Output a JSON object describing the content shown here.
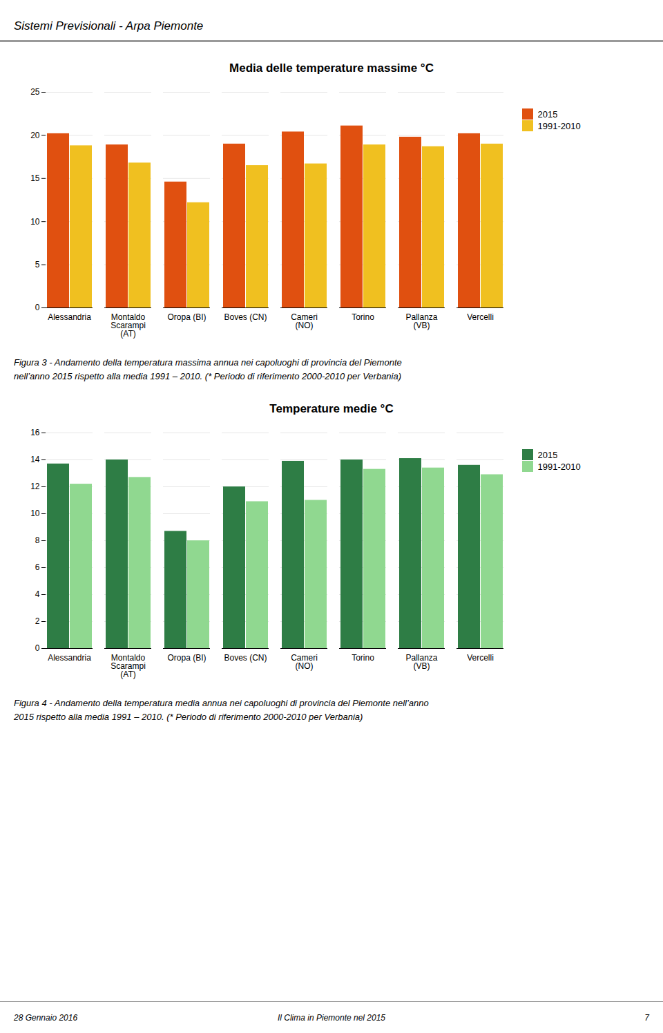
{
  "header": "Sistemi Previsionali - Arpa Piemonte",
  "chart_data": [
    {
      "type": "bar",
      "title": "Media delle temperature massime °C",
      "categories": [
        "Alessandria",
        "Montaldo\nScarampi\n(AT)",
        "Oropa (BI)",
        "Boves (CN)",
        "Cameri\n(NO)",
        "Torino",
        "Pallanza\n(VB)",
        "Vercelli"
      ],
      "series": [
        {
          "name": "2015",
          "color": "#E05010",
          "values": [
            20.2,
            18.9,
            14.6,
            19.0,
            20.4,
            21.1,
            19.8,
            20.2
          ]
        },
        {
          "name": "1991-2010",
          "color": "#F0C020",
          "values": [
            18.8,
            16.8,
            12.2,
            16.5,
            16.7,
            18.9,
            18.7,
            19.0
          ]
        }
      ],
      "ylim": [
        0,
        25
      ],
      "yticks": [
        0,
        5,
        10,
        15,
        20,
        25
      ],
      "grid": true,
      "legend": "right",
      "caption": [
        "Figura 3 - Andamento della temperatura massima annua nei capoluoghi di provincia del Piemonte",
        "nell’anno 2015 rispetto alla media 1991 – 2010. (* Periodo di riferimento 2000-2010 per Verbania)"
      ]
    },
    {
      "type": "bar",
      "title": "Temperature medie °C",
      "categories": [
        "Alessandria",
        "Montaldo\nScarampi\n(AT)",
        "Oropa (BI)",
        "Boves (CN)",
        "Cameri\n(NO)",
        "Torino",
        "Pallanza\n(VB)",
        "Vercelli"
      ],
      "series": [
        {
          "name": "2015",
          "color": "#2E7D45",
          "values": [
            13.7,
            14.0,
            8.7,
            12.0,
            13.9,
            14.0,
            14.1,
            13.6
          ]
        },
        {
          "name": "1991-2010",
          "color": "#90D890",
          "values": [
            12.2,
            12.7,
            8.0,
            10.9,
            11.0,
            13.3,
            13.4,
            12.9
          ]
        }
      ],
      "ylim": [
        0,
        16
      ],
      "yticks": [
        0,
        2,
        4,
        6,
        8,
        10,
        12,
        14,
        16
      ],
      "grid": true,
      "legend": "right",
      "caption": [
        "Figura 4 - Andamento della temperatura media annua nei capoluoghi di provincia del Piemonte nell’anno",
        "2015 rispetto alla media 1991 – 2010. (* Periodo di riferimento 2000-2010 per Verbania)"
      ]
    }
  ],
  "footer": [
    "28 Gennaio 2016",
    "Il Clima in Piemonte nel 2015",
    "7"
  ]
}
